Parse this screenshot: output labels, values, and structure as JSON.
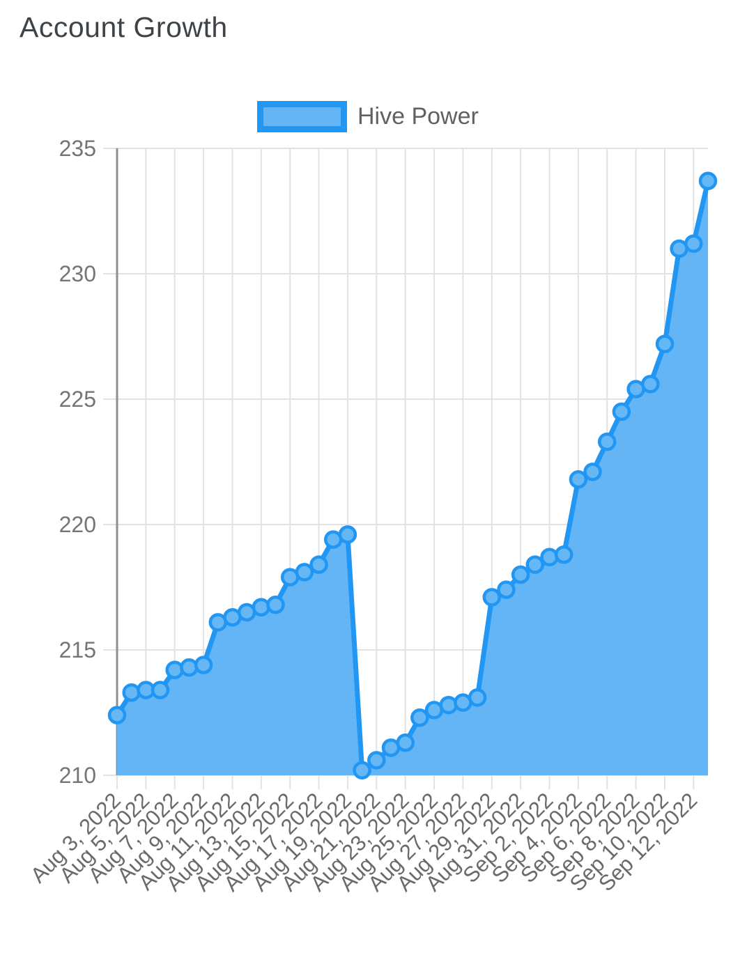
{
  "title": "Account Growth",
  "legend": {
    "label": "Hive Power"
  },
  "chart_data": {
    "type": "area",
    "title": "Account Growth",
    "series_name": "Hive Power",
    "legend_position": "top",
    "grid": true,
    "markers": true,
    "xlabel": "",
    "ylabel": "",
    "ylim": [
      210,
      235
    ],
    "y_ticks": [
      210,
      215,
      220,
      225,
      230,
      235
    ],
    "x": [
      "Aug 3, 2022",
      "Aug 4, 2022",
      "Aug 5, 2022",
      "Aug 6, 2022",
      "Aug 7, 2022",
      "Aug 8, 2022",
      "Aug 9, 2022",
      "Aug 10, 2022",
      "Aug 11, 2022",
      "Aug 12, 2022",
      "Aug 13, 2022",
      "Aug 14, 2022",
      "Aug 15, 2022",
      "Aug 16, 2022",
      "Aug 17, 2022",
      "Aug 18, 2022",
      "Aug 19, 2022",
      "Aug 20, 2022",
      "Aug 21, 2022",
      "Aug 22, 2022",
      "Aug 23, 2022",
      "Aug 24, 2022",
      "Aug 25, 2022",
      "Aug 26, 2022",
      "Aug 27, 2022",
      "Aug 28, 2022",
      "Aug 29, 2022",
      "Aug 30, 2022",
      "Aug 31, 2022",
      "Sep 1, 2022",
      "Sep 2, 2022",
      "Sep 3, 2022",
      "Sep 4, 2022",
      "Sep 5, 2022",
      "Sep 6, 2022",
      "Sep 7, 2022",
      "Sep 8, 2022",
      "Sep 9, 2022",
      "Sep 10, 2022",
      "Sep 11, 2022",
      "Sep 12, 2022",
      "Sep 13, 2022"
    ],
    "values": [
      212.4,
      213.3,
      213.4,
      213.4,
      214.2,
      214.3,
      214.4,
      216.1,
      216.3,
      216.5,
      216.7,
      216.8,
      217.9,
      218.1,
      218.4,
      219.4,
      219.6,
      210.2,
      210.6,
      211.1,
      211.3,
      212.3,
      212.6,
      212.8,
      212.9,
      213.1,
      217.1,
      217.4,
      218.0,
      218.4,
      218.7,
      218.8,
      221.8,
      222.1,
      223.3,
      224.5,
      225.4,
      225.6,
      227.2,
      231.0,
      231.2,
      233.7
    ],
    "x_tick_labels": [
      "Aug 3, 2022",
      "Aug 5, 2022",
      "Aug 7, 2022",
      "Aug 9, 2022",
      "Aug 11, 2022",
      "Aug 13, 2022",
      "Aug 15, 2022",
      "Aug 17, 2022",
      "Aug 19, 2022",
      "Aug 21, 2022",
      "Aug 23, 2022",
      "Aug 25, 2022",
      "Aug 27, 2022",
      "Aug 29, 2022",
      "Aug 31, 2022",
      "Sep 2, 2022",
      "Sep 4, 2022",
      "Sep 6, 2022",
      "Sep 8, 2022",
      "Sep 10, 2022",
      "Sep 12, 2022"
    ],
    "colors": {
      "line": "#2196f3",
      "area_fill": "#64b5f6",
      "marker_fill": "#66b7f5",
      "marker_stroke": "#2196f3",
      "gridline": "#e2e2e2",
      "baseline": "#8f8f8f",
      "y_axis_text": "#757575",
      "x_axis_text": "#6a6a6a",
      "title_text": "#3e4347",
      "legend_text": "#616161"
    }
  }
}
